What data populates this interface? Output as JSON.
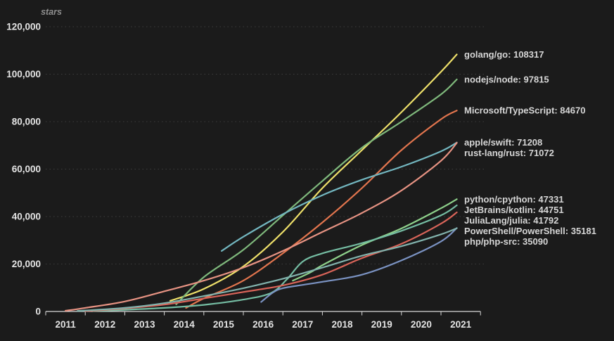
{
  "colors": {
    "background": "#1b1b1b",
    "axis": "#d9d9d9",
    "tick_text": "#e4e4e4",
    "series_label_text": "#d6d6d6",
    "grid": "#3d3d3d",
    "ylabel_text": "#8f8f8f"
  },
  "chart_data": {
    "type": "line",
    "title": "",
    "ylabel": "stars",
    "xlabel": "",
    "xlim": [
      2011,
      2022
    ],
    "ylim": [
      0,
      120000
    ],
    "grid": "horizontal-dashed",
    "legend_position": "right-end-labels",
    "x_tick_labels": [
      "2011",
      "2012",
      "2013",
      "2014",
      "2015",
      "2016",
      "2017",
      "2018",
      "2019",
      "2020",
      "2021"
    ],
    "y_ticks": [
      {
        "value": 0,
        "label": "0"
      },
      {
        "value": 20000,
        "label": "20,000"
      },
      {
        "value": 40000,
        "label": "40,000"
      },
      {
        "value": 60000,
        "label": "60,000"
      },
      {
        "value": 80000,
        "label": "80,000"
      },
      {
        "value": 100000,
        "label": "100,000"
      },
      {
        "value": 120000,
        "label": "120,000"
      }
    ],
    "series": [
      {
        "name": "golang/go",
        "final": 108317,
        "color": "#eee06a",
        "points": [
          [
            2014.15,
            4500
          ],
          [
            2015,
            9500
          ],
          [
            2016,
            19000
          ],
          [
            2017,
            33500
          ],
          [
            2018,
            52000
          ],
          [
            2019,
            68000
          ],
          [
            2020,
            84000
          ],
          [
            2021,
            101000
          ],
          [
            2021.45,
            108317
          ]
        ]
      },
      {
        "name": "nodejs/node",
        "final": 97815,
        "color": "#7fb97c",
        "points": [
          [
            2014.3,
            3000
          ],
          [
            2015,
            14500
          ],
          [
            2016,
            26000
          ],
          [
            2017,
            40500
          ],
          [
            2018,
            55000
          ],
          [
            2019,
            69000
          ],
          [
            2020,
            80000
          ],
          [
            2021,
            91500
          ],
          [
            2021.45,
            97815
          ]
        ]
      },
      {
        "name": "Microsoft/TypeScript",
        "final": 84670,
        "color": "#e2754e",
        "points": [
          [
            2014.55,
            1500
          ],
          [
            2015,
            5500
          ],
          [
            2016,
            13000
          ],
          [
            2017,
            24500
          ],
          [
            2018,
            37500
          ],
          [
            2019,
            52000
          ],
          [
            2020,
            68000
          ],
          [
            2021,
            81000
          ],
          [
            2021.45,
            84670
          ]
        ]
      },
      {
        "name": "apple/swift",
        "final": 71208,
        "color": "#73b7c0",
        "points": [
          [
            2015.45,
            25500
          ],
          [
            2016,
            31500
          ],
          [
            2017,
            41000
          ],
          [
            2018,
            49000
          ],
          [
            2019,
            55500
          ],
          [
            2020,
            61000
          ],
          [
            2021,
            67500
          ],
          [
            2021.45,
            71208
          ]
        ]
      },
      {
        "name": "rust-lang/rust",
        "final": 71072,
        "color": "#e79383",
        "points": [
          [
            2011.5,
            300
          ],
          [
            2012,
            1500
          ],
          [
            2013,
            4200
          ],
          [
            2014,
            8500
          ],
          [
            2015,
            13000
          ],
          [
            2016,
            18500
          ],
          [
            2017,
            25500
          ],
          [
            2018,
            33500
          ],
          [
            2019,
            41500
          ],
          [
            2020,
            51000
          ],
          [
            2021,
            63500
          ],
          [
            2021.45,
            71072
          ]
        ]
      },
      {
        "name": "python/cpython",
        "final": 47331,
        "color": "#8ed18b",
        "points": [
          [
            2017.25,
            13000
          ],
          [
            2017.7,
            16500
          ],
          [
            2018,
            19500
          ],
          [
            2019,
            28000
          ],
          [
            2020,
            35000
          ],
          [
            2021,
            43500
          ],
          [
            2021.45,
            47331
          ]
        ]
      },
      {
        "name": "JetBrains/kotlin",
        "final": 44751,
        "color": "#75bda3",
        "points": [
          [
            2012.2,
            200
          ],
          [
            2013,
            700
          ],
          [
            2014,
            1500
          ],
          [
            2015,
            2800
          ],
          [
            2016,
            5000
          ],
          [
            2016.7,
            7800
          ],
          [
            2017.1,
            13500
          ],
          [
            2017.5,
            21000
          ],
          [
            2018,
            24500
          ],
          [
            2019,
            28800
          ],
          [
            2020,
            34000
          ],
          [
            2021,
            40500
          ],
          [
            2021.45,
            44751
          ]
        ]
      },
      {
        "name": "JuliaLang/julia",
        "final": 41792,
        "color": "#d96459",
        "points": [
          [
            2012,
            150
          ],
          [
            2013,
            1300
          ],
          [
            2014,
            2900
          ],
          [
            2015,
            5500
          ],
          [
            2016,
            8200
          ],
          [
            2017,
            11000
          ],
          [
            2018,
            15500
          ],
          [
            2019,
            22500
          ],
          [
            2020,
            28500
          ],
          [
            2021,
            37000
          ],
          [
            2021.45,
            41792
          ]
        ]
      },
      {
        "name": "PowerShell/PowerShell",
        "final": 35181,
        "color": "#7b93c3",
        "points": [
          [
            2016.45,
            4000
          ],
          [
            2016.75,
            8000
          ],
          [
            2017,
            9800
          ],
          [
            2017.5,
            11200
          ],
          [
            2018,
            12500
          ],
          [
            2019,
            15500
          ],
          [
            2020,
            21500
          ],
          [
            2021,
            29500
          ],
          [
            2021.45,
            35181
          ]
        ]
      },
      {
        "name": "php/php-src",
        "final": 35090,
        "color": "#82b3ad",
        "points": [
          [
            2011.8,
            200
          ],
          [
            2013,
            1500
          ],
          [
            2014,
            3500
          ],
          [
            2015,
            6500
          ],
          [
            2016,
            9800
          ],
          [
            2017,
            13800
          ],
          [
            2018,
            18500
          ],
          [
            2019,
            23500
          ],
          [
            2020,
            27500
          ],
          [
            2021,
            32500
          ],
          [
            2021.45,
            35090
          ]
        ]
      }
    ]
  }
}
